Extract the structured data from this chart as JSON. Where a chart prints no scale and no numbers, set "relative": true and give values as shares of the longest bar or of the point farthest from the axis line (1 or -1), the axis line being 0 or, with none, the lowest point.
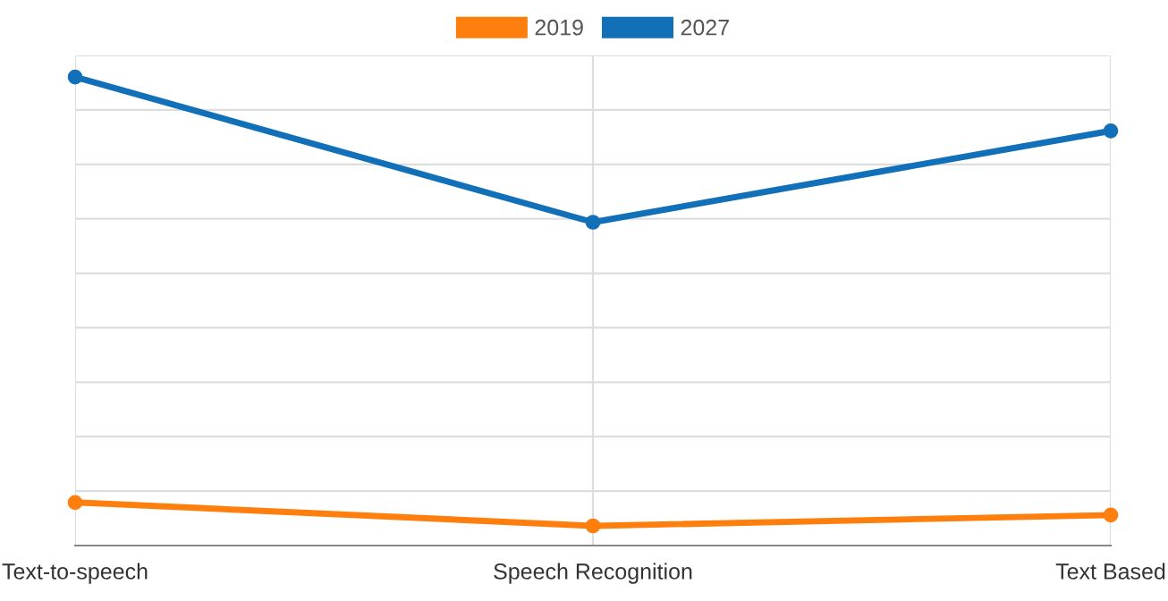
{
  "chart_data": {
    "type": "line",
    "relative": true,
    "categories": [
      "Text-to-speech",
      "Speech Recognition",
      "Text Based"
    ],
    "series": [
      {
        "name": "2019",
        "color": "#ff7f0e",
        "values": [
          0.092,
          0.042,
          0.065
        ]
      },
      {
        "name": "2027",
        "color": "#1170b8",
        "values": [
          1,
          0.69,
          0.885
        ]
      }
    ],
    "marker": "circle",
    "line_style": "solid",
    "grid": true,
    "legend": "top"
  }
}
